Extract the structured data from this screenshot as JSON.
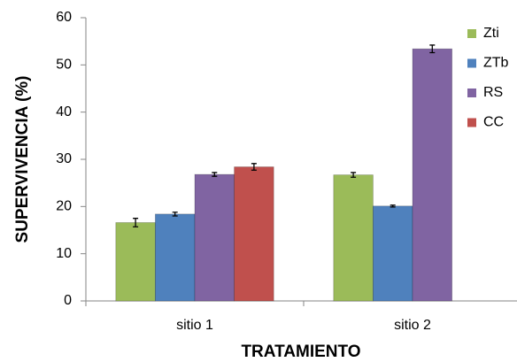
{
  "chart_data": {
    "type": "bar",
    "xlabel": "TRATAMIENTO",
    "ylabel": "SUPERVIVENCIA  (%)",
    "categories": [
      "sitio 1",
      "sitio 2"
    ],
    "series": [
      {
        "name": "Zti",
        "color": "#9bbb59",
        "values": [
          16.6,
          26.7
        ],
        "errors": [
          0.9,
          0.5
        ]
      },
      {
        "name": "ZTb",
        "color": "#4f81bd",
        "values": [
          18.4,
          20.1
        ],
        "errors": [
          0.4,
          0.2
        ]
      },
      {
        "name": "RS",
        "color": "#8064a2",
        "values": [
          26.8,
          53.4
        ],
        "errors": [
          0.4,
          0.8
        ]
      },
      {
        "name": "CC",
        "color": "#c0504d",
        "values": [
          28.4,
          null
        ],
        "errors": [
          0.7,
          null
        ]
      }
    ],
    "ylim": [
      0,
      60
    ],
    "yticks": [
      0,
      10,
      20,
      30,
      40,
      50,
      60
    ],
    "legend": "right"
  }
}
